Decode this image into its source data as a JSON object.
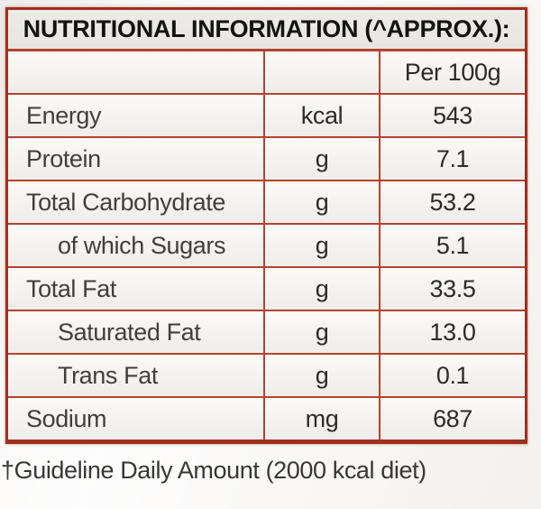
{
  "label": {
    "title": "NUTRITIONAL INFORMATION (^APPROX.):",
    "column_header": "Per 100g",
    "footnote": "†Guideline Daily Amount (2000 kcal diet)",
    "rows": [
      {
        "name": "Energy",
        "unit": "kcal",
        "value": "543",
        "indent": false
      },
      {
        "name": "Protein",
        "unit": "g",
        "value": "7.1",
        "indent": false
      },
      {
        "name": "Total Carbohydrate",
        "unit": "g",
        "value": "53.2",
        "indent": false
      },
      {
        "name": "of which Sugars",
        "unit": "g",
        "value": "5.1",
        "indent": true
      },
      {
        "name": "Total Fat",
        "unit": "g",
        "value": "33.5",
        "indent": false
      },
      {
        "name": "Saturated Fat",
        "unit": "g",
        "value": "13.0",
        "indent": true
      },
      {
        "name": "Trans Fat",
        "unit": "g",
        "value": "0.1",
        "indent": true
      },
      {
        "name": "Sodium",
        "unit": "mg",
        "value": "687",
        "indent": false
      }
    ],
    "colors": {
      "border_red": "#b3432e",
      "border_dark": "#9c3120",
      "header_bg": "#e8e6e3",
      "row_bg": "#f5f3f1",
      "text_dark": "#2c2b29",
      "text_gray": "#403f3d",
      "page_bg": "#fbfaf9"
    }
  }
}
